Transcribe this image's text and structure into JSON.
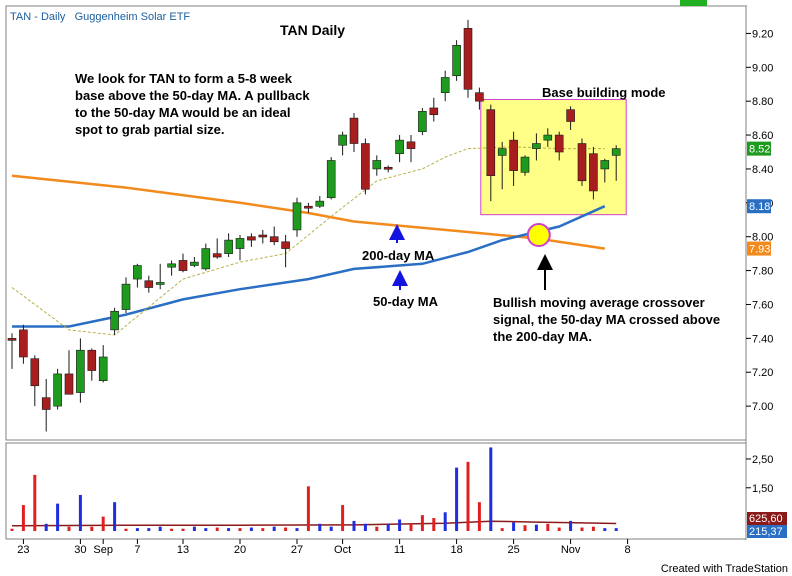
{
  "header": {
    "symbol": "TAN - Daily",
    "name": "Guggenheim Solar ETF"
  },
  "footer": {
    "credit": "Created with TradeStation"
  },
  "chart_data": {
    "type": "candlestick",
    "title": "TAN Daily",
    "price_axis": {
      "min": 6.8,
      "max": 9.35,
      "ticks": [
        7.0,
        7.2,
        7.4,
        7.6,
        7.8,
        8.0,
        8.2,
        8.4,
        8.6,
        8.8,
        9.0,
        9.2
      ],
      "tick_labels": [
        "7.00",
        "7.20",
        "7.40",
        "7.60",
        "7.80",
        "8.00",
        "8.20",
        "8.40",
        "8.60",
        "8.80",
        "9.00",
        "9.20"
      ]
    },
    "volume_axis": {
      "max": 2.95,
      "ticks": [
        1.5,
        2.5
      ],
      "tick_labels": [
        "1,50",
        "2,50"
      ]
    },
    "x_axis": {
      "date_labels": [
        "23",
        "30",
        "Sep",
        "7",
        "13",
        "20",
        "27",
        "Oct",
        "11",
        "18",
        "25",
        "Nov",
        "8"
      ],
      "label_bar_index": [
        1,
        6,
        8,
        11,
        15,
        20,
        25,
        29,
        34,
        39,
        44,
        49,
        54
      ]
    },
    "candles": [
      {
        "o": 7.4,
        "h": 7.43,
        "l": 7.22,
        "c": 7.39
      },
      {
        "o": 7.45,
        "h": 7.48,
        "l": 7.25,
        "c": 7.29
      },
      {
        "o": 7.28,
        "h": 7.3,
        "l": 7.0,
        "c": 7.12
      },
      {
        "o": 7.05,
        "h": 7.16,
        "l": 6.85,
        "c": 6.98
      },
      {
        "o": 7.0,
        "h": 7.22,
        "l": 6.98,
        "c": 7.19
      },
      {
        "o": 7.19,
        "h": 7.33,
        "l": 7.08,
        "c": 7.07
      },
      {
        "o": 7.08,
        "h": 7.4,
        "l": 7.02,
        "c": 7.33
      },
      {
        "o": 7.33,
        "h": 7.34,
        "l": 7.15,
        "c": 7.21
      },
      {
        "o": 7.15,
        "h": 7.36,
        "l": 7.14,
        "c": 7.29
      },
      {
        "o": 7.45,
        "h": 7.58,
        "l": 7.42,
        "c": 7.56
      },
      {
        "o": 7.57,
        "h": 7.76,
        "l": 7.55,
        "c": 7.72
      },
      {
        "o": 7.75,
        "h": 7.84,
        "l": 7.7,
        "c": 7.83
      },
      {
        "o": 7.74,
        "h": 7.77,
        "l": 7.67,
        "c": 7.7
      },
      {
        "o": 7.72,
        "h": 7.84,
        "l": 7.69,
        "c": 7.73
      },
      {
        "o": 7.82,
        "h": 7.86,
        "l": 7.77,
        "c": 7.84
      },
      {
        "o": 7.86,
        "h": 7.9,
        "l": 7.79,
        "c": 7.8
      },
      {
        "o": 7.83,
        "h": 7.88,
        "l": 7.82,
        "c": 7.85
      },
      {
        "o": 7.81,
        "h": 7.96,
        "l": 7.8,
        "c": 7.93
      },
      {
        "o": 7.9,
        "h": 7.99,
        "l": 7.87,
        "c": 7.88
      },
      {
        "o": 7.9,
        "h": 8.02,
        "l": 7.88,
        "c": 7.98
      },
      {
        "o": 7.93,
        "h": 8.01,
        "l": 7.86,
        "c": 7.99
      },
      {
        "o": 8.0,
        "h": 8.02,
        "l": 7.94,
        "c": 7.98
      },
      {
        "o": 8.01,
        "h": 8.04,
        "l": 7.96,
        "c": 8.0
      },
      {
        "o": 8.0,
        "h": 8.06,
        "l": 7.95,
        "c": 7.97
      },
      {
        "o": 7.97,
        "h": 8.01,
        "l": 7.82,
        "c": 7.93
      },
      {
        "o": 8.04,
        "h": 8.23,
        "l": 8.0,
        "c": 8.2
      },
      {
        "o": 8.18,
        "h": 8.2,
        "l": 8.14,
        "c": 8.17
      },
      {
        "o": 8.18,
        "h": 8.24,
        "l": 8.17,
        "c": 8.21
      },
      {
        "o": 8.23,
        "h": 8.47,
        "l": 8.22,
        "c": 8.45
      },
      {
        "o": 8.54,
        "h": 8.62,
        "l": 8.48,
        "c": 8.6
      },
      {
        "o": 8.7,
        "h": 8.73,
        "l": 8.5,
        "c": 8.55
      },
      {
        "o": 8.55,
        "h": 8.58,
        "l": 8.25,
        "c": 8.28
      },
      {
        "o": 8.4,
        "h": 8.48,
        "l": 8.36,
        "c": 8.45
      },
      {
        "o": 8.41,
        "h": 8.42,
        "l": 8.38,
        "c": 8.4
      },
      {
        "o": 8.49,
        "h": 8.6,
        "l": 8.44,
        "c": 8.57
      },
      {
        "o": 8.56,
        "h": 8.6,
        "l": 8.44,
        "c": 8.52
      },
      {
        "o": 8.62,
        "h": 8.76,
        "l": 8.6,
        "c": 8.74
      },
      {
        "o": 8.76,
        "h": 8.82,
        "l": 8.68,
        "c": 8.72
      },
      {
        "o": 8.85,
        "h": 8.98,
        "l": 8.8,
        "c": 8.94
      },
      {
        "o": 8.95,
        "h": 9.16,
        "l": 8.92,
        "c": 9.13
      },
      {
        "o": 9.23,
        "h": 9.28,
        "l": 8.82,
        "c": 8.87
      },
      {
        "o": 8.85,
        "h": 8.88,
        "l": 8.75,
        "c": 8.8
      },
      {
        "o": 8.75,
        "h": 8.78,
        "l": 8.21,
        "c": 8.36
      },
      {
        "o": 8.48,
        "h": 8.56,
        "l": 8.28,
        "c": 8.52
      },
      {
        "o": 8.57,
        "h": 8.62,
        "l": 8.3,
        "c": 8.39
      },
      {
        "o": 8.38,
        "h": 8.48,
        "l": 8.36,
        "c": 8.47
      },
      {
        "o": 8.52,
        "h": 8.61,
        "l": 8.45,
        "c": 8.55
      },
      {
        "o": 8.57,
        "h": 8.64,
        "l": 8.53,
        "c": 8.6
      },
      {
        "o": 8.6,
        "h": 8.62,
        "l": 8.45,
        "c": 8.5
      },
      {
        "o": 8.75,
        "h": 8.77,
        "l": 8.63,
        "c": 8.68
      },
      {
        "o": 8.55,
        "h": 8.58,
        "l": 8.3,
        "c": 8.33
      },
      {
        "o": 8.49,
        "h": 8.53,
        "l": 8.22,
        "c": 8.27
      },
      {
        "o": 8.4,
        "h": 8.46,
        "l": 8.32,
        "c": 8.45
      },
      {
        "o": 8.48,
        "h": 8.54,
        "l": 8.33,
        "c": 8.52
      }
    ],
    "volume": {
      "values": [
        0.08,
        0.9,
        1.95,
        0.25,
        0.95,
        0.15,
        1.25,
        0.15,
        0.5,
        1.0,
        0.08,
        0.1,
        0.1,
        0.15,
        0.08,
        0.08,
        0.15,
        0.1,
        0.12,
        0.1,
        0.1,
        0.12,
        0.1,
        0.15,
        0.12,
        0.1,
        1.55,
        0.25,
        0.15,
        0.9,
        0.35,
        0.25,
        0.15,
        0.25,
        0.4,
        0.25,
        0.55,
        0.45,
        0.65,
        2.2,
        2.4,
        1.0,
        2.9,
        0.1,
        0.3,
        0.2,
        0.22,
        0.25,
        0.12,
        0.35,
        0.12,
        0.15,
        0.1,
        0.1
      ],
      "colors": [
        "red",
        "red",
        "red",
        "blue",
        "blue",
        "red",
        "blue",
        "red",
        "red",
        "blue",
        "red",
        "blue",
        "blue",
        "blue",
        "red",
        "red",
        "blue",
        "blue",
        "red",
        "blue",
        "red",
        "blue",
        "red",
        "blue",
        "red",
        "blue",
        "red",
        "blue",
        "blue",
        "red",
        "blue",
        "blue",
        "red",
        "blue",
        "blue",
        "red",
        "red",
        "red",
        "blue",
        "blue",
        "red",
        "red",
        "blue",
        "red",
        "blue",
        "red",
        "blue",
        "red",
        "red",
        "blue",
        "red",
        "red",
        "blue",
        "blue"
      ]
    },
    "series": [
      {
        "name": "200-day MA",
        "color": "#f28a1c",
        "x": [
          0,
          10,
          20,
          26,
          30,
          38,
          46,
          52
        ],
        "y": [
          8.36,
          8.29,
          8.2,
          8.14,
          8.09,
          8.04,
          7.99,
          7.93
        ]
      },
      {
        "name": "50-day MA",
        "color": "#2a6fc4",
        "x": [
          0,
          5,
          10,
          15,
          20,
          26,
          30,
          36,
          40,
          43,
          48,
          52
        ],
        "y": [
          7.47,
          7.47,
          7.54,
          7.63,
          7.69,
          7.75,
          7.81,
          7.84,
          7.91,
          7.98,
          8.06,
          8.18
        ]
      },
      {
        "name": "",
        "color": "#b8b045",
        "dashed": true,
        "x": [
          0,
          5,
          9,
          15,
          20,
          24,
          28,
          32,
          36,
          38,
          40,
          44,
          48,
          52
        ],
        "y": [
          7.7,
          7.45,
          7.42,
          7.75,
          7.85,
          7.9,
          8.12,
          8.33,
          8.4,
          8.47,
          8.52,
          8.53,
          8.52,
          8.52
        ]
      },
      {
        "name": "",
        "color": "#8b1a1a",
        "x": [
          0,
          10,
          20,
          30,
          38,
          42,
          46,
          50,
          53
        ],
        "y": [
          0.18,
          0.2,
          0.2,
          0.21,
          0.27,
          0.34,
          0.31,
          0.28,
          0.26
        ]
      }
    ],
    "price_flags": [
      {
        "label": "8.52",
        "value": 8.52,
        "color": "#1e9b1e"
      },
      {
        "label": "8.18",
        "value": 8.18,
        "color": "#2a6fc4"
      },
      {
        "label": "7.93",
        "value": 7.93,
        "color": "#f28a1c"
      }
    ],
    "volume_flags": [
      {
        "label": "625,60",
        "color": "#8b1a1a"
      },
      {
        "label": "215,37",
        "color": "#2a6fc4"
      }
    ],
    "base_box": {
      "from_bar": 42,
      "to_bar": 53,
      "low": 8.13,
      "high": 8.81,
      "label": "Base building mode"
    },
    "crossover": {
      "bar": 47,
      "value": 8.01
    },
    "annotations": {
      "plan": [
        "We look for TAN to form a 5-8 week",
        "base above the 50-day MA.  A pullback",
        "to the 50-day MA would be an ideal",
        "spot to grab partial size."
      ],
      "ma200_label": "200-day MA",
      "ma50_label": "50-day MA",
      "crossover_text": [
        "Bullish moving average crossover",
        "signal, the 50-day MA crossed above",
        "the 200-day MA."
      ]
    }
  }
}
